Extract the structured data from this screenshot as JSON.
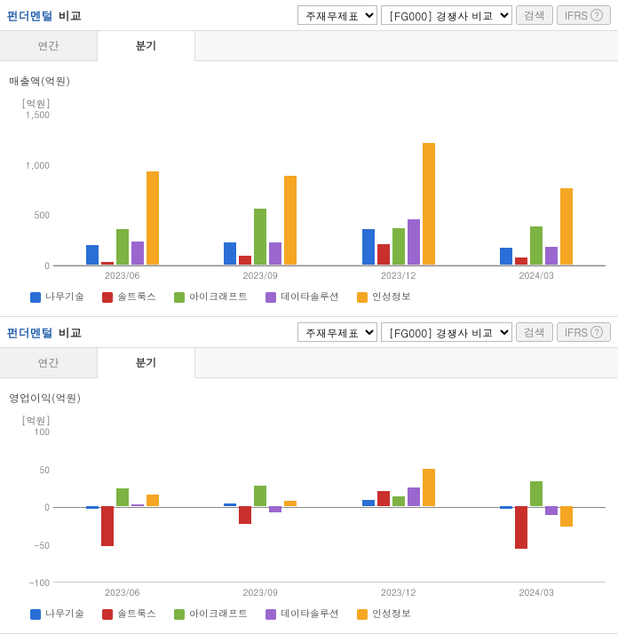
{
  "colors": {
    "blue": "#2a6fd6",
    "red": "#c9302c",
    "green": "#7cb342",
    "purple": "#9a67cf",
    "orange": "#f5a623",
    "grid": "#888888"
  },
  "series_names": [
    "나무기술",
    "솔트룩스",
    "아이크래프트",
    "데이타솔루션",
    "인성정보"
  ],
  "series_colors": [
    "blue",
    "red",
    "green",
    "purple",
    "orange"
  ],
  "categories": [
    "2023/06",
    "2023/09",
    "2023/12",
    "2024/03"
  ],
  "header": {
    "title_main": "펀더멘털",
    "title_sub": "비교",
    "select1": "주재무제표",
    "select2": "[FG000] 경쟁사 비교",
    "search_btn": "검색",
    "ifrs_btn": "IFRS"
  },
  "tabs": {
    "annual": "연간",
    "quarterly": "분기"
  },
  "chart1": {
    "title": "매출액(억원)",
    "unit": "[억원]",
    "ymin": 0,
    "ymax": 1500,
    "ytick_step": 500,
    "data": [
      [
        190,
        30,
        350,
        230,
        930
      ],
      [
        220,
        90,
        560,
        225,
        880
      ],
      [
        350,
        200,
        360,
        450,
        1210
      ],
      [
        170,
        75,
        380,
        180,
        760
      ]
    ]
  },
  "chart2": {
    "title": "영업이익(억원)",
    "unit": "[억원]",
    "ymin": -100,
    "ymax": 100,
    "ytick_step": 50,
    "data": [
      [
        -3,
        -53,
        23,
        2,
        15
      ],
      [
        3,
        -23,
        27,
        -8,
        7
      ],
      [
        8,
        20,
        13,
        25,
        50
      ],
      [
        -3,
        -57,
        33,
        -12,
        -27
      ]
    ]
  }
}
